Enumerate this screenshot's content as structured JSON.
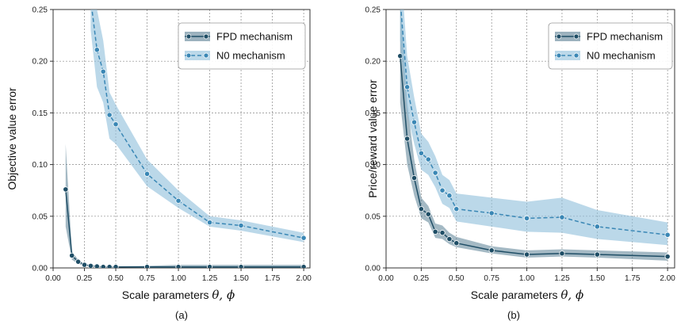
{
  "figure": {
    "panels": [
      {
        "caption": "(a)"
      },
      {
        "caption": "(b)"
      }
    ]
  },
  "colors": {
    "fpd": "#1f4e66",
    "fpd_band": "#5a7f93",
    "n0": "#3a87b5",
    "n0_band": "#8dbedb",
    "grid": "#8a8a8a"
  },
  "chart_data": [
    {
      "type": "line",
      "xlabel": "Scale parameters",
      "xlabel_math": "θ, ϕ",
      "ylabel": "Objective value error",
      "xlim": [
        0.0,
        2.05
      ],
      "ylim": [
        0.0,
        0.25
      ],
      "xticks": [
        "0.00",
        "0.25",
        "0.50",
        "0.75",
        "1.00",
        "1.25",
        "1.50",
        "1.75",
        "2.00"
      ],
      "yticks": [
        "0.00",
        "0.05",
        "0.10",
        "0.15",
        "0.20",
        "0.25"
      ],
      "grid": true,
      "legend_position": "top-right",
      "series": [
        {
          "name": "FPD mechanism",
          "style": "solid",
          "x": [
            0.1,
            0.15,
            0.2,
            0.25,
            0.3,
            0.35,
            0.4,
            0.45,
            0.5,
            0.75,
            1.0,
            1.25,
            1.5,
            2.0
          ],
          "y": [
            0.076,
            0.012,
            0.006,
            0.003,
            0.002,
            0.0015,
            0.001,
            0.001,
            0.001,
            0.001,
            0.001,
            0.001,
            0.001,
            0.001
          ],
          "lower": [
            0.04,
            0.008,
            0.004,
            0.002,
            0.001,
            0.001,
            0.0005,
            0.0005,
            0.0005,
            0.0,
            0.0,
            0.0,
            0.0,
            0.0
          ],
          "upper": [
            0.12,
            0.016,
            0.008,
            0.004,
            0.003,
            0.002,
            0.0015,
            0.0015,
            0.0015,
            0.002,
            0.003,
            0.003,
            0.003,
            0.003
          ]
        },
        {
          "name": "N0 mechanism",
          "style": "dashed",
          "x": [
            0.3,
            0.35,
            0.4,
            0.45,
            0.5,
            0.75,
            1.0,
            1.25,
            1.5,
            2.0
          ],
          "y": [
            0.26,
            0.211,
            0.19,
            0.148,
            0.139,
            0.091,
            0.065,
            0.044,
            0.041,
            0.029
          ],
          "lower": [
            0.23,
            0.175,
            0.16,
            0.125,
            0.12,
            0.079,
            0.058,
            0.04,
            0.036,
            0.025
          ],
          "upper": [
            0.29,
            0.25,
            0.22,
            0.17,
            0.158,
            0.105,
            0.075,
            0.05,
            0.046,
            0.034
          ]
        }
      ]
    },
    {
      "type": "line",
      "xlabel": "Scale parameters",
      "xlabel_math": "θ, ϕ",
      "ylabel": "Price/reward value error",
      "xlim": [
        0.0,
        2.05
      ],
      "ylim": [
        0.0,
        0.25
      ],
      "xticks": [
        "0.00",
        "0.25",
        "0.50",
        "0.75",
        "1.00",
        "1.25",
        "1.50",
        "1.75",
        "2.00"
      ],
      "yticks": [
        "0.00",
        "0.05",
        "0.10",
        "0.15",
        "0.20",
        "0.25"
      ],
      "grid": true,
      "legend_position": "top-right",
      "series": [
        {
          "name": "FPD mechanism",
          "style": "solid",
          "x": [
            0.1,
            0.15,
            0.2,
            0.25,
            0.3,
            0.35,
            0.4,
            0.45,
            0.5,
            0.75,
            1.0,
            1.25,
            1.5,
            2.0
          ],
          "y": [
            0.205,
            0.125,
            0.087,
            0.057,
            0.052,
            0.035,
            0.034,
            0.028,
            0.024,
            0.017,
            0.013,
            0.014,
            0.013,
            0.011
          ],
          "lower": [
            0.16,
            0.1,
            0.07,
            0.048,
            0.044,
            0.029,
            0.028,
            0.023,
            0.02,
            0.014,
            0.01,
            0.011,
            0.01,
            0.007
          ],
          "upper": [
            0.26,
            0.16,
            0.105,
            0.068,
            0.06,
            0.043,
            0.041,
            0.034,
            0.03,
            0.021,
            0.017,
            0.018,
            0.017,
            0.015
          ]
        },
        {
          "name": "N0 mechanism",
          "style": "dashed",
          "x": [
            0.1,
            0.15,
            0.2,
            0.25,
            0.3,
            0.35,
            0.4,
            0.45,
            0.5,
            0.75,
            1.0,
            1.25,
            1.5,
            2.0
          ],
          "y": [
            0.26,
            0.175,
            0.141,
            0.111,
            0.105,
            0.092,
            0.075,
            0.07,
            0.057,
            0.053,
            0.048,
            0.049,
            0.04,
            0.032
          ],
          "lower": [
            0.22,
            0.15,
            0.12,
            0.095,
            0.09,
            0.078,
            0.062,
            0.058,
            0.045,
            0.04,
            0.035,
            0.034,
            0.028,
            0.022
          ],
          "upper": [
            0.3,
            0.205,
            0.165,
            0.13,
            0.122,
            0.108,
            0.09,
            0.085,
            0.072,
            0.068,
            0.064,
            0.068,
            0.056,
            0.044
          ]
        }
      ]
    }
  ]
}
